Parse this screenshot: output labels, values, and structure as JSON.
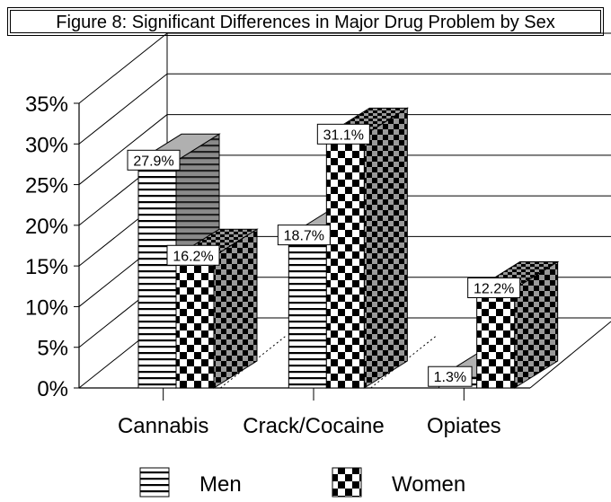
{
  "title": "Figure 8: Significant Differences in Major Drug Problem by Sex",
  "chart_data": {
    "type": "bar",
    "categories": [
      "Cannabis",
      "Crack/Cocaine",
      "Opiates"
    ],
    "series": [
      {
        "name": "Men",
        "values": [
          27.9,
          18.7,
          1.3
        ],
        "labels": [
          "27.9%",
          "18.7%",
          "1.3%"
        ],
        "pattern": "horizontal-stripes"
      },
      {
        "name": "Women",
        "values": [
          16.2,
          31.1,
          12.2
        ],
        "labels": [
          "16.2%",
          "31.1%",
          "12.2%"
        ],
        "pattern": "checkerboard"
      }
    ],
    "ylim": [
      0,
      35
    ],
    "yticks": [
      0,
      5,
      10,
      15,
      20,
      25,
      30,
      35
    ],
    "ytick_labels": [
      "0%",
      "5%",
      "10%",
      "15%",
      "20%",
      "25%",
      "30%",
      "35%"
    ],
    "grid": true,
    "legend_position": "bottom",
    "style": "3d"
  }
}
